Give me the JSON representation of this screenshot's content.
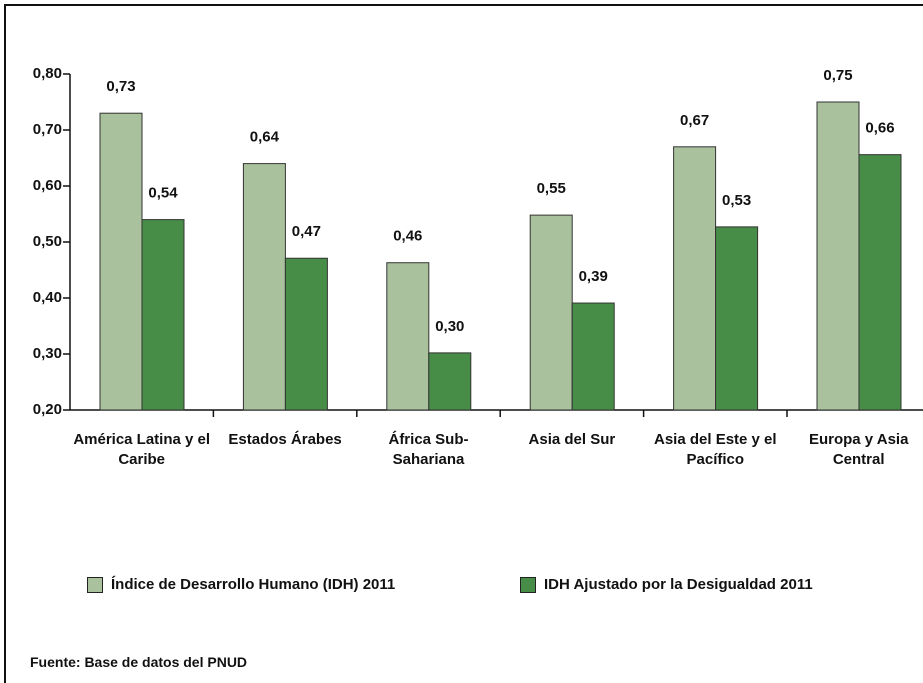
{
  "chart_data": {
    "type": "bar",
    "categories": [
      "América Latina y el Caribe",
      "Estados Árabes",
      "África Sub-Sahariana",
      "Asia del Sur",
      "Asia del Este y el Pacífico",
      "Europa y Asia Central"
    ],
    "series": [
      {
        "name": "Índice de Desarrollo Humano (IDH) 2011",
        "color": "#a9c19c",
        "values": [
          0.73,
          0.64,
          0.463,
          0.548,
          0.67,
          0.75
        ],
        "value_labels": [
          "0,73",
          "0,64",
          "0,46",
          "0,55",
          "0,67",
          "0,75"
        ]
      },
      {
        "name": "IDH Ajustado por la Desigualdad 2011",
        "color": "#478c47",
        "values": [
          0.54,
          0.471,
          0.302,
          0.391,
          0.527,
          0.656
        ],
        "value_labels": [
          "0,54",
          "0,47",
          "0,30",
          "0,39",
          "0,53",
          "0,66"
        ]
      }
    ],
    "ylim": [
      0.2,
      0.8
    ],
    "yticks": [
      {
        "value": 0.2,
        "label": "0,20"
      },
      {
        "value": 0.3,
        "label": "0,30"
      },
      {
        "value": 0.4,
        "label": "0,40"
      },
      {
        "value": 0.5,
        "label": "0,50"
      },
      {
        "value": 0.6,
        "label": "0,60"
      },
      {
        "value": 0.7,
        "label": "0,70"
      },
      {
        "value": 0.8,
        "label": "0,80"
      }
    ],
    "grid": false,
    "source": "Fuente: Base de datos del PNUD"
  }
}
